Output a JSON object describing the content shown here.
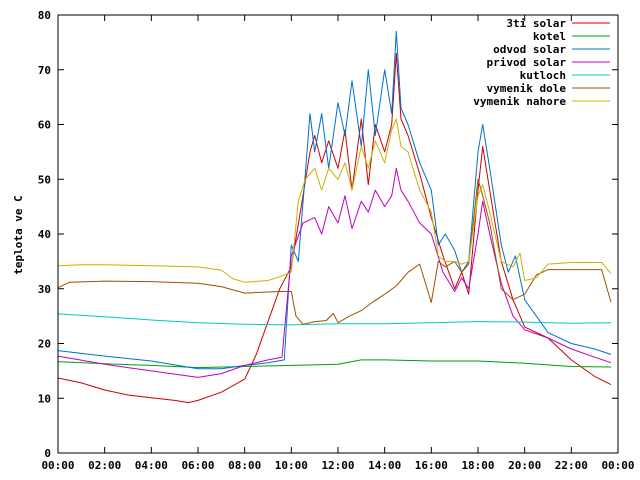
{
  "chart_data": {
    "type": "line",
    "title": "",
    "xlabel": "",
    "ylabel": "teplota ve C",
    "ylim": [
      0,
      80
    ],
    "xlim": [
      0,
      24
    ],
    "y_ticks": [
      "0",
      "10",
      "20",
      "30",
      "40",
      "50",
      "60",
      "70",
      "80"
    ],
    "x_ticks": [
      "00:00",
      "02:00",
      "04:00",
      "06:00",
      "08:00",
      "10:00",
      "12:00",
      "14:00",
      "16:00",
      "18:00",
      "20:00",
      "22:00",
      "00:00"
    ],
    "grid": false,
    "legend_position": "top-right",
    "series": [
      {
        "name": "3ti solar",
        "color": "#cc0000",
        "points": [
          [
            0,
            13.7
          ],
          [
            1,
            12.8
          ],
          [
            2,
            11.5
          ],
          [
            3,
            10.6
          ],
          [
            4,
            10.1
          ],
          [
            5,
            9.6
          ],
          [
            5.6,
            9.2
          ],
          [
            6,
            9.6
          ],
          [
            7,
            11.1
          ],
          [
            8,
            13.5
          ],
          [
            8.5,
            18
          ],
          [
            9,
            24
          ],
          [
            9.5,
            30
          ],
          [
            10,
            34
          ],
          [
            10.5,
            47
          ],
          [
            10.8,
            55
          ],
          [
            11,
            58
          ],
          [
            11.3,
            53
          ],
          [
            11.6,
            57
          ],
          [
            12,
            52
          ],
          [
            12.3,
            59
          ],
          [
            12.6,
            48
          ],
          [
            13,
            61
          ],
          [
            13.3,
            49
          ],
          [
            13.6,
            60
          ],
          [
            14,
            55
          ],
          [
            14.3,
            60
          ],
          [
            14.5,
            73
          ],
          [
            14.7,
            61
          ],
          [
            15,
            58
          ],
          [
            15.5,
            51
          ],
          [
            16,
            43
          ],
          [
            16.5,
            36
          ],
          [
            17,
            30
          ],
          [
            17.3,
            33
          ],
          [
            17.6,
            29
          ],
          [
            18,
            48
          ],
          [
            18.2,
            56
          ],
          [
            18.5,
            48
          ],
          [
            19,
            35
          ],
          [
            19.5,
            28
          ],
          [
            20,
            23
          ],
          [
            21,
            21
          ],
          [
            22,
            17
          ],
          [
            23,
            14
          ],
          [
            23.7,
            12.5
          ]
        ]
      },
      {
        "name": "kotel",
        "color": "#00a000",
        "points": [
          [
            0,
            16.7
          ],
          [
            2,
            16.3
          ],
          [
            4,
            16
          ],
          [
            6,
            15.6
          ],
          [
            8,
            15.8
          ],
          [
            10,
            16
          ],
          [
            12,
            16.2
          ],
          [
            13,
            17
          ],
          [
            14,
            17
          ],
          [
            16,
            16.8
          ],
          [
            18,
            16.8
          ],
          [
            19,
            16.6
          ],
          [
            20,
            16.4
          ],
          [
            22,
            15.8
          ],
          [
            23.7,
            15.7
          ]
        ]
      },
      {
        "name": "odvod solar",
        "color": "#0070d0",
        "points": [
          [
            0,
            18.7
          ],
          [
            2,
            17.7
          ],
          [
            4,
            16.8
          ],
          [
            6,
            15.4
          ],
          [
            7,
            15.4
          ],
          [
            8,
            16
          ],
          [
            9,
            16.5
          ],
          [
            9.7,
            17
          ],
          [
            10,
            38
          ],
          [
            10.3,
            35
          ],
          [
            10.6,
            51
          ],
          [
            10.8,
            62
          ],
          [
            11,
            55
          ],
          [
            11.3,
            62
          ],
          [
            11.6,
            52
          ],
          [
            12,
            64
          ],
          [
            12.3,
            58
          ],
          [
            12.6,
            68
          ],
          [
            13,
            56
          ],
          [
            13.3,
            70
          ],
          [
            13.6,
            58
          ],
          [
            14,
            70
          ],
          [
            14.3,
            62
          ],
          [
            14.5,
            77
          ],
          [
            14.7,
            63
          ],
          [
            15,
            60
          ],
          [
            15.5,
            53
          ],
          [
            16,
            48
          ],
          [
            16.3,
            38
          ],
          [
            16.6,
            40
          ],
          [
            17,
            37
          ],
          [
            17.3,
            33
          ],
          [
            17.6,
            35
          ],
          [
            18,
            55
          ],
          [
            18.2,
            60
          ],
          [
            18.5,
            52
          ],
          [
            19,
            38
          ],
          [
            19.3,
            33
          ],
          [
            19.6,
            36
          ],
          [
            20,
            28
          ],
          [
            21,
            22
          ],
          [
            22,
            20
          ],
          [
            23,
            19
          ],
          [
            23.7,
            18
          ]
        ]
      },
      {
        "name": "privod solar",
        "color": "#c000c0",
        "points": [
          [
            0,
            17.7
          ],
          [
            2,
            16.2
          ],
          [
            4,
            15
          ],
          [
            6,
            13.8
          ],
          [
            7,
            14.5
          ],
          [
            8,
            16
          ],
          [
            9,
            17
          ],
          [
            9.6,
            17.5
          ],
          [
            10,
            36
          ],
          [
            10.5,
            42
          ],
          [
            11,
            43
          ],
          [
            11.3,
            40
          ],
          [
            11.6,
            45
          ],
          [
            12,
            42
          ],
          [
            12.3,
            47
          ],
          [
            12.6,
            41
          ],
          [
            13,
            46
          ],
          [
            13.3,
            44
          ],
          [
            13.6,
            48
          ],
          [
            14,
            45
          ],
          [
            14.3,
            47
          ],
          [
            14.5,
            52
          ],
          [
            14.7,
            48
          ],
          [
            15,
            46
          ],
          [
            15.5,
            42
          ],
          [
            16,
            40
          ],
          [
            16.5,
            33
          ],
          [
            17,
            29.5
          ],
          [
            17.3,
            32
          ],
          [
            17.6,
            30
          ],
          [
            18,
            40
          ],
          [
            18.2,
            46
          ],
          [
            18.5,
            40
          ],
          [
            19,
            31
          ],
          [
            19.5,
            25
          ],
          [
            20,
            22.5
          ],
          [
            21,
            21
          ],
          [
            22,
            19
          ],
          [
            23,
            17.5
          ],
          [
            23.7,
            16.5
          ]
        ]
      },
      {
        "name": "kutloch",
        "color": "#00c8c8",
        "points": [
          [
            0,
            25.4
          ],
          [
            2,
            24.9
          ],
          [
            4,
            24.3
          ],
          [
            6,
            23.8
          ],
          [
            8,
            23.5
          ],
          [
            10,
            23.4
          ],
          [
            12,
            23.6
          ],
          [
            14,
            23.6
          ],
          [
            16,
            23.8
          ],
          [
            18,
            24
          ],
          [
            20,
            23.9
          ],
          [
            22,
            23.7
          ],
          [
            23.7,
            23.8
          ]
        ]
      },
      {
        "name": "vymenik dole",
        "color": "#a05000",
        "points": [
          [
            0,
            30.2
          ],
          [
            0.5,
            31.2
          ],
          [
            2,
            31.4
          ],
          [
            4,
            31.3
          ],
          [
            6,
            31
          ],
          [
            7,
            30.4
          ],
          [
            8,
            29.2
          ],
          [
            9,
            29.4
          ],
          [
            9.5,
            29.5
          ],
          [
            10,
            29.5
          ],
          [
            10.2,
            25
          ],
          [
            10.5,
            23.5
          ],
          [
            11,
            24
          ],
          [
            11.5,
            24.2
          ],
          [
            11.8,
            25.5
          ],
          [
            12,
            23.8
          ],
          [
            12.5,
            25
          ],
          [
            13,
            26
          ],
          [
            13.5,
            27.6
          ],
          [
            14,
            29
          ],
          [
            14.5,
            30.5
          ],
          [
            15,
            33
          ],
          [
            15.5,
            34.5
          ],
          [
            16,
            27.5
          ],
          [
            16.3,
            35
          ],
          [
            16.6,
            34
          ],
          [
            17,
            35
          ],
          [
            17.3,
            33
          ],
          [
            17.6,
            34.5
          ],
          [
            18,
            50
          ],
          [
            18.2,
            47
          ],
          [
            18.5,
            42
          ],
          [
            19,
            30
          ],
          [
            19.5,
            28
          ],
          [
            20,
            29
          ],
          [
            20.5,
            32.5
          ],
          [
            21,
            33.5
          ],
          [
            22,
            33.5
          ],
          [
            23.3,
            33.5
          ],
          [
            23.7,
            27.5
          ]
        ]
      },
      {
        "name": "vymenik nahore",
        "color": "#c8b400",
        "points": [
          [
            0,
            34.2
          ],
          [
            1,
            34.4
          ],
          [
            2,
            34.4
          ],
          [
            4,
            34.2
          ],
          [
            6,
            34
          ],
          [
            7,
            33.4
          ],
          [
            7.5,
            31.8
          ],
          [
            8,
            31.2
          ],
          [
            9,
            31.5
          ],
          [
            9.5,
            32.2
          ],
          [
            10,
            33
          ],
          [
            10.3,
            46
          ],
          [
            10.6,
            50
          ],
          [
            11,
            52
          ],
          [
            11.3,
            48
          ],
          [
            11.6,
            52
          ],
          [
            12,
            50
          ],
          [
            12.3,
            53
          ],
          [
            12.6,
            48
          ],
          [
            13,
            56
          ],
          [
            13.3,
            52
          ],
          [
            13.6,
            57
          ],
          [
            14,
            53
          ],
          [
            14.3,
            59
          ],
          [
            14.5,
            61
          ],
          [
            14.7,
            56
          ],
          [
            15,
            55
          ],
          [
            15.5,
            48
          ],
          [
            16,
            44
          ],
          [
            16.3,
            36
          ],
          [
            16.6,
            35
          ],
          [
            17,
            35
          ],
          [
            17.3,
            34.5
          ],
          [
            17.6,
            35
          ],
          [
            18,
            47
          ],
          [
            18.2,
            49
          ],
          [
            18.5,
            44
          ],
          [
            19,
            35
          ],
          [
            19.5,
            34
          ],
          [
            19.8,
            36.5
          ],
          [
            20,
            31.5
          ],
          [
            20.5,
            32
          ],
          [
            21,
            34.5
          ],
          [
            22,
            34.8
          ],
          [
            23.3,
            34.8
          ],
          [
            23.7,
            32.8
          ]
        ]
      }
    ]
  }
}
